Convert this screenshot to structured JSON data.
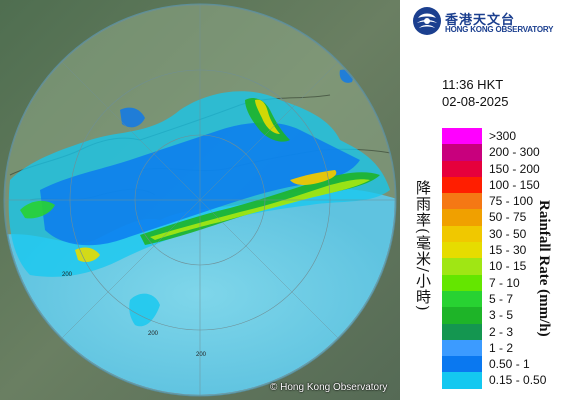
{
  "header": {
    "logo_cn": "香港天文台",
    "logo_en": "HONG KONG OBSERVATORY",
    "logo_icon": "hko-logo-icon"
  },
  "timestamp": {
    "time": "11:36 HKT",
    "date": "02-08-2025"
  },
  "legend": {
    "title_cn": "降雨率(毫米/小時)",
    "title_en": "Rainfall Rate (mm/h)",
    "items": [
      {
        "label": ">300",
        "color": "#ff00ff"
      },
      {
        "label": "200 - 300",
        "color": "#c8007d"
      },
      {
        "label": "150 - 200",
        "color": "#e6003c"
      },
      {
        "label": "100 - 150",
        "color": "#ff1e00"
      },
      {
        "label": "75 - 100",
        "color": "#f57814"
      },
      {
        "label": "50 - 75",
        "color": "#f0a000"
      },
      {
        "label": "30 - 50",
        "color": "#f0c800"
      },
      {
        "label": "15 - 30",
        "color": "#e6dc00"
      },
      {
        "label": "10 - 15",
        "color": "#a0e614"
      },
      {
        "label": "7 - 10",
        "color": "#64e600"
      },
      {
        "label": "5 - 7",
        "color": "#28d232"
      },
      {
        "label": "3 - 5",
        "color": "#1eb428"
      },
      {
        "label": "2 - 3",
        "color": "#149650"
      },
      {
        "label": "1 - 2",
        "color": "#3c9bff"
      },
      {
        "label": "0.50 - 1",
        "color": "#0a78f0"
      },
      {
        "label": "0.15 - 0.50",
        "color": "#14c8f0"
      }
    ]
  },
  "map": {
    "copyright": "© Hong Kong Observatory",
    "range_rings": [
      "200",
      "200",
      "200"
    ]
  }
}
